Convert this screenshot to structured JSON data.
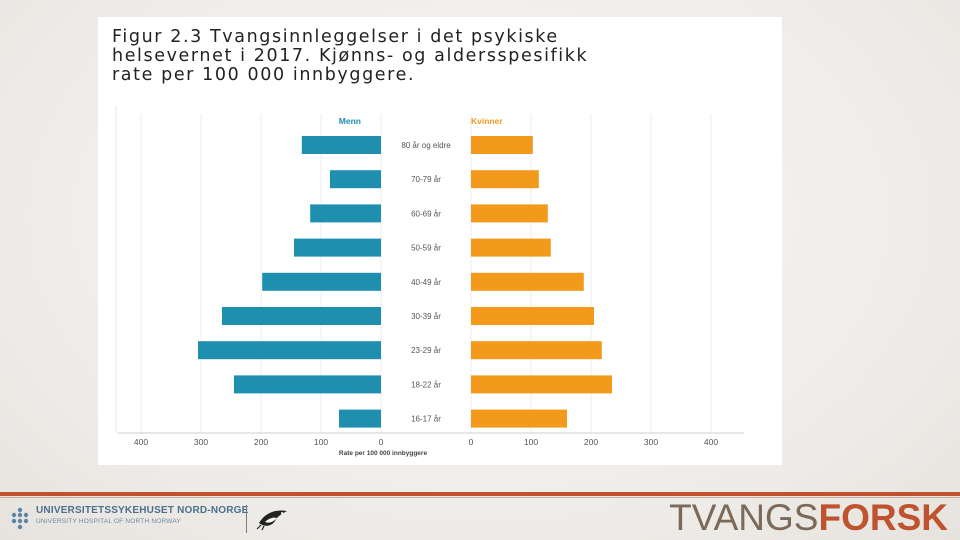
{
  "figure": {
    "title": "Figur 2.3 Tvangsinnleggelser i det psykiske\nhelsevernet i 2017. Kjønns- og aldersspesifikk\nrate per 100 000 innbyggere."
  },
  "chart_data": {
    "type": "bar",
    "orientation": "horizontal-population-pyramid",
    "title": "Figur 2.3 Tvangsinnleggelser i det psykiske helsevernet i 2017. Kjønns- og aldersspesifikk rate per 100 000 innbyggere.",
    "categories": [
      "80 år og eldre",
      "70-79 år",
      "60-69 år",
      "50-59 år",
      "40-49 år",
      "30-39 år",
      "23-29 år",
      "18-22 år",
      "16-17 år"
    ],
    "series": [
      {
        "name": "Menn",
        "color": "#1f8fb0",
        "side": "left",
        "values": [
          132,
          85,
          118,
          145,
          198,
          265,
          305,
          245,
          70
        ]
      },
      {
        "name": "Kvinner",
        "color": "#f39a1d",
        "side": "right",
        "values": [
          103,
          113,
          128,
          133,
          188,
          205,
          218,
          235,
          160
        ]
      }
    ],
    "xlabel": "Rate per 100 000 innbyggere",
    "ylabel": "",
    "xlim": [
      0,
      400
    ],
    "ticks": [
      0,
      100,
      200,
      300,
      400
    ],
    "tick_labels_left": [
      "400",
      "300",
      "200",
      "100",
      "0"
    ],
    "tick_labels_right": [
      "0",
      "100",
      "200",
      "300",
      "400"
    ],
    "grid": true,
    "legend": "top-center"
  },
  "footer": {
    "hospital_name": "UNIVERSITETSSYKEHUSET NORD-NORGE",
    "hospital_name_en": "UNIVERSITY HOSPITAL OF NORTH NORWAY",
    "brand_part1": "TVANGS",
    "brand_part2": "FORSK",
    "brand_color": "#c0532f",
    "brand_gray": "#7b6a58",
    "logo_icon": "unn-dots-icon",
    "bird_icon": "penguin-bird-icon"
  }
}
